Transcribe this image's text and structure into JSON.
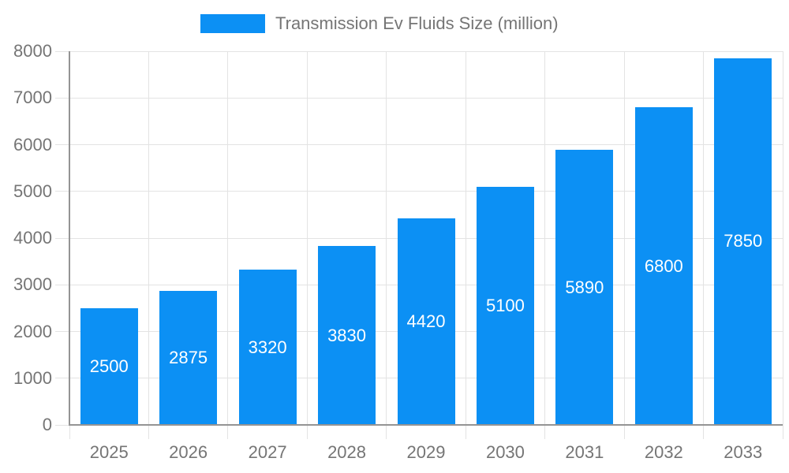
{
  "chart_data": {
    "type": "bar",
    "title": "Transmission Ev Fluids Size (million)",
    "categories": [
      "2025",
      "2026",
      "2027",
      "2028",
      "2029",
      "2030",
      "2031",
      "2032",
      "2033"
    ],
    "series": [
      {
        "name": "Transmission Ev Fluids Size (million)",
        "values": [
          2500,
          2875,
          3320,
          3830,
          4420,
          5100,
          5890,
          6800,
          7850
        ]
      }
    ],
    "xlabel": "",
    "ylabel": "",
    "ylim": [
      0,
      8000
    ],
    "y_ticks": [
      0,
      1000,
      2000,
      3000,
      4000,
      5000,
      6000,
      7000,
      8000
    ],
    "grid": true,
    "legend_position": "top-center",
    "value_labels": "inside-center"
  },
  "legend": {
    "label": "Transmission Ev Fluids Size (million)"
  },
  "colors": {
    "bar": "#0C90F4",
    "grid": "#E3E3E3",
    "axis": "#949494",
    "text": "#757575",
    "value_label": "#FFFFFF",
    "background": "#FFFFFF"
  }
}
